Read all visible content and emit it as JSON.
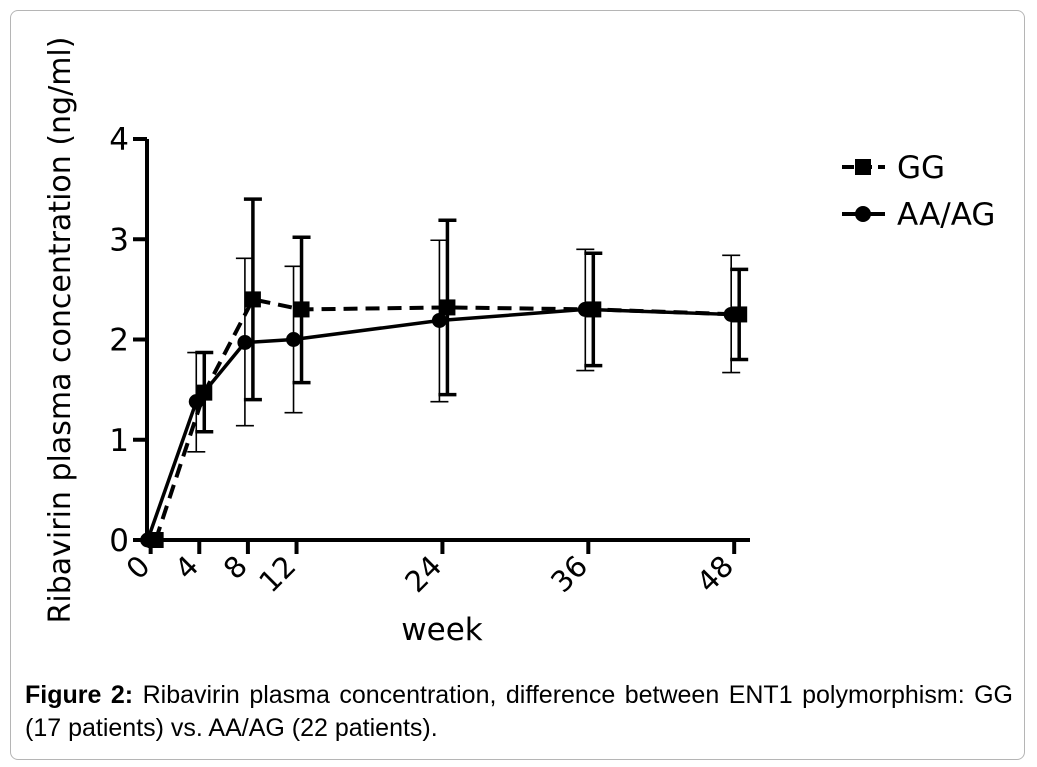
{
  "chart_data": {
    "type": "line",
    "xlabel": "week",
    "ylabel": "Ribavirin plasma concentration (ng/ml)",
    "xlim": [
      -0.3,
      49.3
    ],
    "ylim": [
      0,
      4
    ],
    "xticks": [
      0,
      4,
      8,
      12,
      24,
      36,
      48
    ],
    "xtick_labels": [
      "0",
      "4",
      "8",
      "12",
      "24",
      "36",
      "48"
    ],
    "yticks": [
      0,
      1,
      2,
      3,
      4
    ],
    "ytick_labels": [
      "0",
      "1",
      "2",
      "3",
      "4"
    ],
    "legend_position": "right",
    "series": [
      {
        "name": "GG",
        "marker": "square",
        "line_style": "dashed",
        "x": [
          0,
          4,
          8,
          12,
          24,
          36,
          48
        ],
        "values": [
          0,
          1.47,
          2.4,
          2.3,
          2.32,
          2.3,
          2.25
        ],
        "error_low": [
          0,
          1.08,
          1.4,
          1.57,
          1.45,
          1.74,
          1.8
        ],
        "error_high": [
          0,
          1.87,
          3.4,
          3.02,
          3.19,
          2.86,
          2.7
        ]
      },
      {
        "name": "AA/AG",
        "marker": "circle",
        "line_style": "solid",
        "x": [
          0,
          4,
          8,
          12,
          24,
          36,
          48
        ],
        "values": [
          0,
          1.38,
          1.97,
          2.0,
          2.19,
          2.3,
          2.25
        ],
        "error_low": [
          0,
          0.88,
          1.14,
          1.27,
          1.38,
          1.69,
          1.67
        ],
        "error_high": [
          0,
          1.87,
          2.81,
          2.73,
          2.99,
          2.9,
          2.84
        ]
      }
    ]
  },
  "caption": {
    "label": "Figure 2:",
    "text": " Ribavirin plasma concentration, difference between ENT1 polymorphism: GG (17 patients) vs. AA/AG (22 patients)."
  }
}
